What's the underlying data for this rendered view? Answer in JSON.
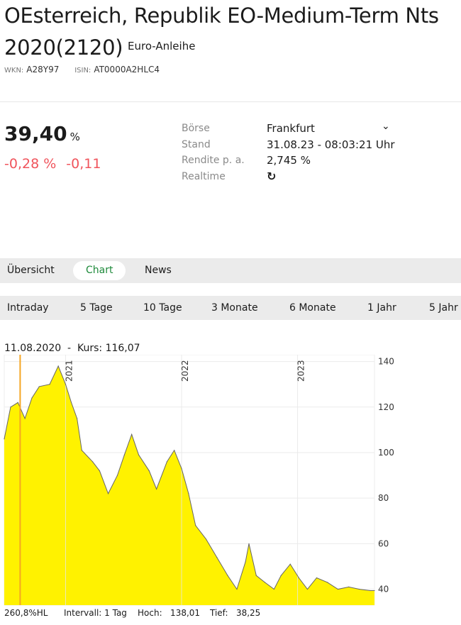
{
  "header": {
    "title": "OEsterreich, Republik EO-Medium-Term Nts 2020(2120)",
    "subtype": "Euro-Anleihe",
    "wkn_label": "WKN:",
    "wkn": "A28Y97",
    "isin_label": "ISIN:",
    "isin": "AT0000A2HLC4"
  },
  "quote": {
    "price": "39,40",
    "unit": "%",
    "change_pct": "-0,28 %",
    "change_abs": "-0,11",
    "negative_color": "#f0545c"
  },
  "details": {
    "labels": [
      "Börse",
      "Stand",
      "Rendite p. a.",
      "Realtime"
    ],
    "exchange": "Frankfurt",
    "stand": "31.08.23 - 08:03:21 Uhr",
    "rendite": "2,745 %",
    "realtime_icon": "refresh-clock-icon"
  },
  "tabs": [
    {
      "label": "Übersicht",
      "active": false
    },
    {
      "label": "Chart",
      "active": true
    },
    {
      "label": "News",
      "active": false
    }
  ],
  "periods": [
    "Intraday",
    "5 Tage",
    "10 Tage",
    "3 Monate",
    "6 Monate",
    "1 Jahr",
    "5 Jahr"
  ],
  "chart_info": {
    "hover": "11.08.2020  -  Kurs: 116,07"
  },
  "footer": {
    "scale": "260,8%HL",
    "interval": "Intervall: 1 Tag",
    "high": "Hoch:   138,01",
    "low": "Tief:   38,25"
  },
  "chart_data": {
    "type": "area",
    "fill_color": "#fff200",
    "line_color": "#666666",
    "cursor_color": "#f5a623",
    "xlim": [
      "2020-06-22",
      "2023-08-31"
    ],
    "ylim": [
      33,
      143
    ],
    "y_ticks": [
      140,
      120,
      100,
      80,
      60,
      40
    ],
    "x_year_labels": [
      "2021",
      "2022",
      "2023"
    ],
    "cursor_date": "2020-08-11",
    "grid": true,
    "points": [
      [
        "2020-06-22",
        106
      ],
      [
        "2020-07-12",
        120
      ],
      [
        "2020-08-04",
        122
      ],
      [
        "2020-08-26",
        115
      ],
      [
        "2020-09-17",
        124
      ],
      [
        "2020-10-10",
        129
      ],
      [
        "2020-11-12",
        130
      ],
      [
        "2020-12-09",
        138
      ],
      [
        "2021-01-01",
        130
      ],
      [
        "2021-01-19",
        122
      ],
      [
        "2021-02-06",
        115
      ],
      [
        "2021-02-21",
        101
      ],
      [
        "2021-03-27",
        96
      ],
      [
        "2021-04-18",
        92
      ],
      [
        "2021-05-15",
        82
      ],
      [
        "2021-06-13",
        90
      ],
      [
        "2021-07-05",
        99
      ],
      [
        "2021-07-28",
        108
      ],
      [
        "2021-08-19",
        99
      ],
      [
        "2021-09-21",
        92
      ],
      [
        "2021-10-14",
        84
      ],
      [
        "2021-11-16",
        96
      ],
      [
        "2021-12-09",
        101
      ],
      [
        "2022-01-01",
        93
      ],
      [
        "2022-01-23",
        82
      ],
      [
        "2022-02-14",
        68
      ],
      [
        "2022-03-19",
        62
      ],
      [
        "2022-04-22",
        54
      ],
      [
        "2022-05-26",
        46
      ],
      [
        "2022-06-24",
        40
      ],
      [
        "2022-07-21",
        52
      ],
      [
        "2022-08-01",
        60
      ],
      [
        "2022-08-24",
        46
      ],
      [
        "2022-09-20",
        43
      ],
      [
        "2022-10-19",
        40
      ],
      [
        "2022-11-10",
        46
      ],
      [
        "2022-12-09",
        51
      ],
      [
        "2023-01-05",
        45
      ],
      [
        "2023-02-01",
        40
      ],
      [
        "2023-03-02",
        45
      ],
      [
        "2023-04-05",
        43
      ],
      [
        "2023-05-08",
        40
      ],
      [
        "2023-06-11",
        41
      ],
      [
        "2023-07-14",
        40
      ],
      [
        "2023-08-17",
        39.4
      ],
      [
        "2023-08-31",
        39.4
      ]
    ]
  }
}
